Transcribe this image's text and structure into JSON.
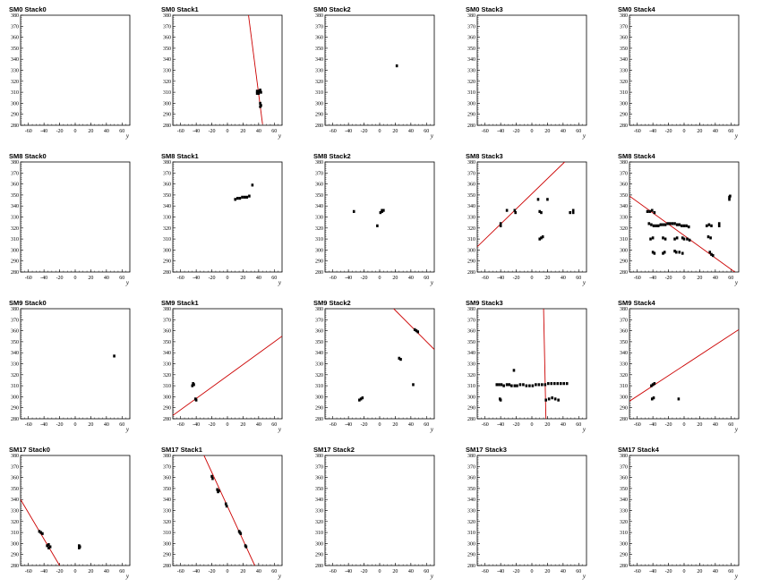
{
  "chart_data": [
    {
      "title": "SM0 Stack0",
      "type": "scatter",
      "xlabel": "y",
      "xlim": [
        -70,
        70
      ],
      "ylim": [
        280,
        380
      ],
      "x_ticks": [
        -60,
        -40,
        -20,
        0,
        20,
        40,
        60
      ],
      "y_ticks": [
        280,
        290,
        300,
        310,
        320,
        330,
        340,
        350,
        360,
        370,
        380
      ],
      "points": [],
      "lines": []
    },
    {
      "title": "SM0 Stack1",
      "type": "scatter",
      "xlabel": "y",
      "xlim": [
        -70,
        70
      ],
      "ylim": [
        280,
        380
      ],
      "x_ticks": [
        -60,
        -40,
        -20,
        0,
        20,
        40,
        60
      ],
      "y_ticks": [
        280,
        290,
        300,
        310,
        320,
        330,
        340,
        350,
        360,
        370,
        380
      ],
      "points": [
        [
          38,
          311
        ],
        [
          39,
          310
        ],
        [
          40,
          309
        ],
        [
          41,
          311
        ],
        [
          42,
          312
        ],
        [
          43,
          310
        ],
        [
          38,
          309
        ],
        [
          42,
          300
        ],
        [
          43,
          298
        ],
        [
          42,
          297
        ]
      ],
      "lines": [
        [
          [
            27,
            380
          ],
          [
            45,
            281
          ]
        ]
      ]
    },
    {
      "title": "SM0 Stack2",
      "type": "scatter",
      "xlabel": "y",
      "xlim": [
        -70,
        70
      ],
      "ylim": [
        280,
        380
      ],
      "x_ticks": [
        -60,
        -40,
        -20,
        0,
        20,
        40,
        60
      ],
      "y_ticks": [
        280,
        290,
        300,
        310,
        320,
        330,
        340,
        350,
        360,
        370,
        380
      ],
      "points": [
        [
          22,
          334
        ]
      ],
      "lines": []
    },
    {
      "title": "SM0 Stack3",
      "type": "scatter",
      "xlabel": "y",
      "xlim": [
        -70,
        70
      ],
      "ylim": [
        280,
        380
      ],
      "x_ticks": [
        -60,
        -40,
        -20,
        0,
        20,
        40,
        60
      ],
      "y_ticks": [
        280,
        290,
        300,
        310,
        320,
        330,
        340,
        350,
        360,
        370,
        380
      ],
      "points": [],
      "lines": []
    },
    {
      "title": "SM0 Stack4",
      "type": "scatter",
      "xlabel": "y",
      "xlim": [
        -70,
        70
      ],
      "ylim": [
        280,
        380
      ],
      "x_ticks": [
        -60,
        -40,
        -20,
        0,
        20,
        40,
        60
      ],
      "y_ticks": [
        280,
        290,
        300,
        310,
        320,
        330,
        340,
        350,
        360,
        370,
        380
      ],
      "points": [],
      "lines": []
    },
    {
      "title": "SM8 Stack0",
      "type": "scatter",
      "xlabel": "y",
      "xlim": [
        -70,
        70
      ],
      "ylim": [
        280,
        380
      ],
      "x_ticks": [
        -60,
        -40,
        -20,
        0,
        20,
        40,
        60
      ],
      "y_ticks": [
        280,
        290,
        300,
        310,
        320,
        330,
        340,
        350,
        360,
        370,
        380
      ],
      "points": [],
      "lines": []
    },
    {
      "title": "SM8 Stack1",
      "type": "scatter",
      "xlabel": "y",
      "xlim": [
        -70,
        70
      ],
      "ylim": [
        280,
        380
      ],
      "x_ticks": [
        -60,
        -40,
        -20,
        0,
        20,
        40,
        60
      ],
      "y_ticks": [
        280,
        290,
        300,
        310,
        320,
        330,
        340,
        350,
        360,
        370,
        380
      ],
      "points": [
        [
          10,
          346
        ],
        [
          13,
          347
        ],
        [
          16,
          347
        ],
        [
          19,
          348
        ],
        [
          22,
          348
        ],
        [
          25,
          348
        ],
        [
          28,
          349
        ],
        [
          32,
          359
        ]
      ],
      "lines": []
    },
    {
      "title": "SM8 Stack2",
      "type": "scatter",
      "xlabel": "y",
      "xlim": [
        -70,
        70
      ],
      "ylim": [
        280,
        380
      ],
      "x_ticks": [
        -60,
        -40,
        -20,
        0,
        20,
        40,
        60
      ],
      "y_ticks": [
        280,
        290,
        300,
        310,
        320,
        330,
        340,
        350,
        360,
        370,
        380
      ],
      "points": [
        [
          -33,
          335
        ],
        [
          -3,
          322
        ],
        [
          1,
          334
        ],
        [
          3,
          335
        ],
        [
          5,
          336
        ],
        [
          3,
          336
        ]
      ],
      "lines": []
    },
    {
      "title": "SM8 Stack3",
      "type": "scatter",
      "xlabel": "y",
      "xlim": [
        -70,
        70
      ],
      "ylim": [
        280,
        380
      ],
      "x_ticks": [
        -60,
        -40,
        -20,
        0,
        20,
        40,
        60
      ],
      "y_ticks": [
        280,
        290,
        300,
        310,
        320,
        330,
        340,
        350,
        360,
        370,
        380
      ],
      "points": [
        [
          -40,
          322
        ],
        [
          -40,
          324
        ],
        [
          -32,
          336
        ],
        [
          -22,
          336
        ],
        [
          -21,
          334
        ],
        [
          8,
          346
        ],
        [
          10,
          335
        ],
        [
          12,
          334
        ],
        [
          20,
          346
        ],
        [
          10,
          310
        ],
        [
          12,
          311
        ],
        [
          14,
          312
        ],
        [
          49,
          334
        ],
        [
          53,
          336
        ],
        [
          53,
          334
        ]
      ],
      "lines": [
        [
          [
            -70,
            303
          ],
          [
            42,
            380
          ]
        ]
      ]
    },
    {
      "title": "SM8 Stack4",
      "type": "scatter",
      "xlabel": "y",
      "xlim": [
        -70,
        70
      ],
      "ylim": [
        280,
        380
      ],
      "x_ticks": [
        -60,
        -40,
        -20,
        0,
        20,
        40,
        60
      ],
      "y_ticks": [
        280,
        290,
        300,
        310,
        320,
        330,
        340,
        350,
        360,
        370,
        380
      ],
      "points": [
        [
          -47,
          335
        ],
        [
          -44,
          335
        ],
        [
          -41,
          336
        ],
        [
          -38,
          334
        ],
        [
          -45,
          324
        ],
        [
          -42,
          323
        ],
        [
          -39,
          322
        ],
        [
          -36,
          322
        ],
        [
          -33,
          322
        ],
        [
          -30,
          323
        ],
        [
          -27,
          323
        ],
        [
          -24,
          323
        ],
        [
          -21,
          324
        ],
        [
          -18,
          324
        ],
        [
          -15,
          324
        ],
        [
          -12,
          324
        ],
        [
          -9,
          323
        ],
        [
          -6,
          323
        ],
        [
          -3,
          322
        ],
        [
          0,
          322
        ],
        [
          3,
          322
        ],
        [
          6,
          321
        ],
        [
          -43,
          310
        ],
        [
          -40,
          311
        ],
        [
          -27,
          311
        ],
        [
          -24,
          310
        ],
        [
          -12,
          310
        ],
        [
          -9,
          311
        ],
        [
          -2,
          311
        ],
        [
          0,
          310
        ],
        [
          4,
          310
        ],
        [
          7,
          309
        ],
        [
          29,
          322
        ],
        [
          32,
          323
        ],
        [
          35,
          322
        ],
        [
          45,
          322
        ],
        [
          45,
          324
        ],
        [
          31,
          312
        ],
        [
          34,
          311
        ],
        [
          -40,
          298
        ],
        [
          -38,
          297
        ],
        [
          -27,
          297
        ],
        [
          -25,
          298
        ],
        [
          -12,
          299
        ],
        [
          -10,
          298
        ],
        [
          -6,
          298
        ],
        [
          -2,
          297
        ],
        [
          33,
          298
        ],
        [
          35,
          296
        ],
        [
          37,
          295
        ],
        [
          58,
          346
        ],
        [
          59,
          349
        ],
        [
          58,
          348
        ]
      ],
      "lines": [
        [
          [
            -70,
            349
          ],
          [
            65,
            280
          ]
        ]
      ]
    },
    {
      "title": "SM9 Stack0",
      "type": "scatter",
      "xlabel": "y",
      "xlim": [
        -70,
        70
      ],
      "ylim": [
        280,
        380
      ],
      "x_ticks": [
        -60,
        -40,
        -20,
        0,
        20,
        40,
        60
      ],
      "y_ticks": [
        280,
        290,
        300,
        310,
        320,
        330,
        340,
        350,
        360,
        370,
        380
      ],
      "points": [
        [
          50,
          337
        ]
      ],
      "lines": []
    },
    {
      "title": "SM9 Stack1",
      "type": "scatter",
      "xlabel": "y",
      "xlim": [
        -70,
        70
      ],
      "ylim": [
        280,
        380
      ],
      "x_ticks": [
        -60,
        -40,
        -20,
        0,
        20,
        40,
        60
      ],
      "y_ticks": [
        280,
        290,
        300,
        310,
        320,
        330,
        340,
        350,
        360,
        370,
        380
      ],
      "points": [
        [
          -45,
          310
        ],
        [
          -44,
          312
        ],
        [
          -43,
          311
        ],
        [
          -41,
          298
        ],
        [
          -40,
          297
        ]
      ],
      "lines": [
        [
          [
            -70,
            283
          ],
          [
            70,
            355
          ]
        ]
      ]
    },
    {
      "title": "SM9 Stack2",
      "type": "scatter",
      "xlabel": "y",
      "xlim": [
        -70,
        70
      ],
      "ylim": [
        280,
        380
      ],
      "x_ticks": [
        -60,
        -40,
        -20,
        0,
        20,
        40,
        60
      ],
      "y_ticks": [
        280,
        290,
        300,
        310,
        320,
        330,
        340,
        350,
        360,
        370,
        380
      ],
      "points": [
        [
          -26,
          297
        ],
        [
          -24,
          298
        ],
        [
          -22,
          299
        ],
        [
          25,
          335
        ],
        [
          27,
          334
        ],
        [
          43,
          311
        ],
        [
          45,
          361
        ],
        [
          47,
          360
        ],
        [
          49,
          359
        ]
      ],
      "lines": [
        [
          [
            18,
            380
          ],
          [
            70,
            343
          ]
        ]
      ]
    },
    {
      "title": "SM9 Stack3",
      "type": "scatter",
      "xlabel": "y",
      "xlim": [
        -70,
        70
      ],
      "ylim": [
        280,
        380
      ],
      "x_ticks": [
        -60,
        -40,
        -20,
        0,
        20,
        40,
        60
      ],
      "y_ticks": [
        280,
        290,
        300,
        310,
        320,
        330,
        340,
        350,
        360,
        370,
        380
      ],
      "points": [
        [
          -45,
          311
        ],
        [
          -42,
          311
        ],
        [
          -39,
          311
        ],
        [
          -36,
          310
        ],
        [
          -32,
          311
        ],
        [
          -29,
          311
        ],
        [
          -26,
          310
        ],
        [
          -22,
          310
        ],
        [
          -19,
          310
        ],
        [
          -15,
          311
        ],
        [
          -11,
          311
        ],
        [
          -7,
          310
        ],
        [
          -3,
          310
        ],
        [
          1,
          310
        ],
        [
          5,
          311
        ],
        [
          9,
          311
        ],
        [
          13,
          311
        ],
        [
          17,
          311
        ],
        [
          21,
          312
        ],
        [
          25,
          312
        ],
        [
          29,
          312
        ],
        [
          33,
          312
        ],
        [
          37,
          312
        ],
        [
          41,
          312
        ],
        [
          45,
          312
        ],
        [
          -23,
          324
        ],
        [
          -41,
          298
        ],
        [
          -40,
          297
        ],
        [
          18,
          297
        ],
        [
          22,
          298
        ],
        [
          26,
          299
        ],
        [
          30,
          298
        ],
        [
          34,
          297
        ]
      ],
      "lines": [
        [
          [
            15,
            380
          ],
          [
            18,
            280
          ]
        ]
      ]
    },
    {
      "title": "SM9 Stack4",
      "type": "scatter",
      "xlabel": "y",
      "xlim": [
        -70,
        70
      ],
      "ylim": [
        280,
        380
      ],
      "x_ticks": [
        -60,
        -40,
        -20,
        0,
        20,
        40,
        60
      ],
      "y_ticks": [
        280,
        290,
        300,
        310,
        320,
        330,
        340,
        350,
        360,
        370,
        380
      ],
      "points": [
        [
          -42,
          310
        ],
        [
          -40,
          311
        ],
        [
          -38,
          312
        ],
        [
          -41,
          298
        ],
        [
          -39,
          299
        ],
        [
          -7,
          298
        ]
      ],
      "lines": [
        [
          [
            -70,
            296
          ],
          [
            70,
            361
          ]
        ]
      ]
    },
    {
      "title": "SM17 Stack0",
      "type": "scatter",
      "xlabel": "y",
      "xlim": [
        -70,
        70
      ],
      "ylim": [
        280,
        380
      ],
      "x_ticks": [
        -60,
        -40,
        -20,
        0,
        20,
        40,
        60
      ],
      "y_ticks": [
        280,
        290,
        300,
        310,
        320,
        330,
        340,
        350,
        360,
        370,
        380
      ],
      "points": [
        [
          -46,
          311
        ],
        [
          -44,
          310
        ],
        [
          -42,
          309
        ],
        [
          -36,
          298
        ],
        [
          -34,
          299
        ],
        [
          -32,
          297
        ],
        [
          -34,
          296
        ],
        [
          5,
          298
        ],
        [
          5,
          296
        ],
        [
          6,
          297
        ]
      ],
      "lines": [
        [
          [
            -70,
            340
          ],
          [
            -20,
            280
          ]
        ]
      ]
    },
    {
      "title": "SM17 Stack1",
      "type": "scatter",
      "xlabel": "y",
      "xlim": [
        -70,
        70
      ],
      "ylim": [
        280,
        380
      ],
      "x_ticks": [
        -60,
        -40,
        -20,
        0,
        20,
        40,
        60
      ],
      "y_ticks": [
        280,
        290,
        300,
        310,
        320,
        330,
        340,
        350,
        360,
        370,
        380
      ],
      "points": [
        [
          -20,
          361
        ],
        [
          -19,
          359
        ],
        [
          -13,
          349
        ],
        [
          -12,
          347
        ],
        [
          -11,
          348
        ],
        [
          -2,
          336
        ],
        [
          -1,
          334
        ],
        [
          15,
          311
        ],
        [
          16,
          310
        ],
        [
          17,
          309
        ],
        [
          23,
          298
        ],
        [
          24,
          297
        ]
      ],
      "lines": [
        [
          [
            -30,
            380
          ],
          [
            35,
            280
          ]
        ]
      ]
    },
    {
      "title": "SM17 Stack2",
      "type": "scatter",
      "xlabel": "y",
      "xlim": [
        -70,
        70
      ],
      "ylim": [
        280,
        380
      ],
      "x_ticks": [
        -60,
        -40,
        -20,
        0,
        20,
        40,
        60
      ],
      "y_ticks": [
        280,
        290,
        300,
        310,
        320,
        330,
        340,
        350,
        360,
        370,
        380
      ],
      "points": [],
      "lines": []
    },
    {
      "title": "SM17 Stack3",
      "type": "scatter",
      "xlabel": "y",
      "xlim": [
        -70,
        70
      ],
      "ylim": [
        280,
        380
      ],
      "x_ticks": [
        -60,
        -40,
        -20,
        0,
        20,
        40,
        60
      ],
      "y_ticks": [
        280,
        290,
        300,
        310,
        320,
        330,
        340,
        350,
        360,
        370,
        380
      ],
      "points": [],
      "lines": []
    },
    {
      "title": "SM17 Stack4",
      "type": "scatter",
      "xlabel": "y",
      "xlim": [
        -70,
        70
      ],
      "ylim": [
        280,
        380
      ],
      "x_ticks": [
        -60,
        -40,
        -20,
        0,
        20,
        40,
        60
      ],
      "y_ticks": [
        280,
        290,
        300,
        310,
        320,
        330,
        340,
        350,
        360,
        370,
        380
      ],
      "points": [],
      "lines": []
    }
  ],
  "colors": {
    "point": "#000000",
    "fit_line": "#cc0000",
    "axis": "#000000",
    "background": "#ffffff"
  }
}
